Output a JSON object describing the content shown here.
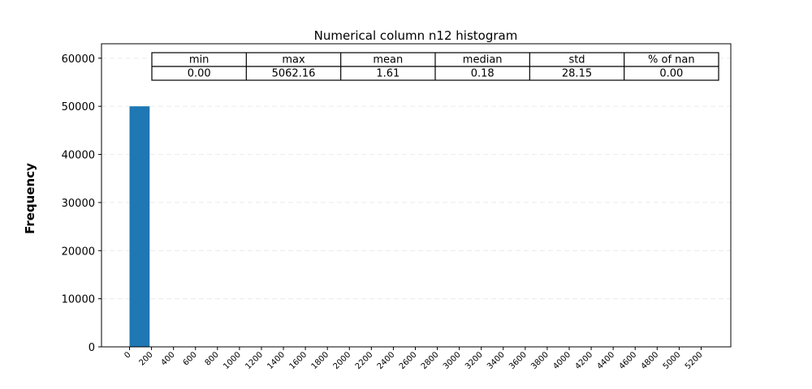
{
  "chart_data": {
    "type": "bar",
    "title": "Numerical column n12 histogram",
    "xlabel": "",
    "ylabel": "Frequency",
    "bins": [
      [
        0,
        183.0
      ]
    ],
    "values": [
      50000
    ],
    "ylim": [
      0,
      63000
    ],
    "xlim": [
      -255,
      5470
    ],
    "yticks": [
      0,
      10000,
      20000,
      30000,
      40000,
      50000,
      60000
    ],
    "xticks": [
      0,
      200,
      400,
      600,
      800,
      1000,
      1200,
      1400,
      1600,
      1800,
      2000,
      2200,
      2400,
      2600,
      2800,
      3000,
      3200,
      3400,
      3600,
      3800,
      4000,
      4200,
      4400,
      4600,
      4800,
      5000,
      5200
    ],
    "grid": "horizontal dashed",
    "bar_color": "#1f77b4",
    "stats_table": {
      "headers": [
        "min",
        "max",
        "mean",
        "median",
        "std",
        "% of nan"
      ],
      "values": [
        "0.00",
        "5062.16",
        "1.61",
        "0.18",
        "28.15",
        "0.00"
      ]
    }
  }
}
